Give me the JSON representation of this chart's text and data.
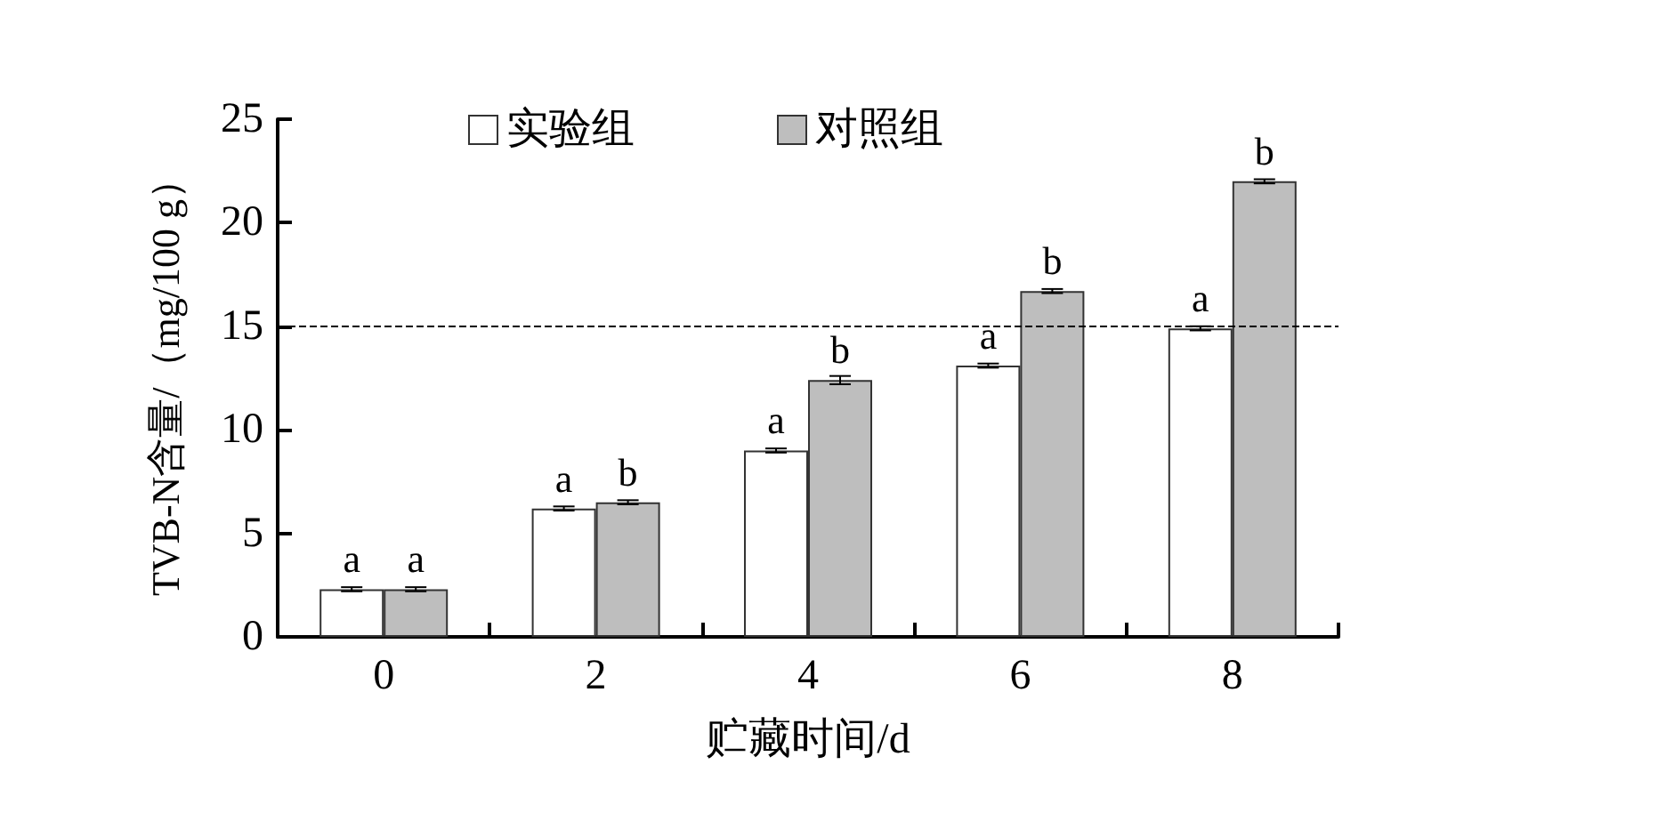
{
  "chart_data": {
    "type": "bar",
    "xlabel": "贮藏时间/d",
    "ylabel": "TVB-N含量/（mg/100 g）",
    "categories": [
      "0",
      "2",
      "4",
      "6",
      "8"
    ],
    "series": [
      {
        "name": "实验组",
        "color": "#ffffff",
        "values": [
          2.3,
          6.2,
          9.0,
          13.1,
          14.9
        ],
        "errors": [
          0.1,
          0.1,
          0.1,
          0.1,
          0.1
        ],
        "value_labels": [
          "a",
          "a",
          "a",
          "a",
          "a"
        ]
      },
      {
        "name": "对照组",
        "color": "#bebebe",
        "values": [
          2.3,
          6.5,
          12.4,
          16.7,
          22.0
        ],
        "errors": [
          0.1,
          0.1,
          0.2,
          0.1,
          0.1
        ],
        "value_labels": [
          "a",
          "b",
          "b",
          "b",
          "b"
        ]
      }
    ],
    "ylim": [
      0,
      25
    ],
    "yticks": [
      0,
      5,
      10,
      15,
      20,
      25
    ],
    "grid": false,
    "legend": "top",
    "ref_lines": [
      {
        "axis": "y",
        "value": 15,
        "line_style": "dashed",
        "color": "#000000"
      }
    ]
  }
}
